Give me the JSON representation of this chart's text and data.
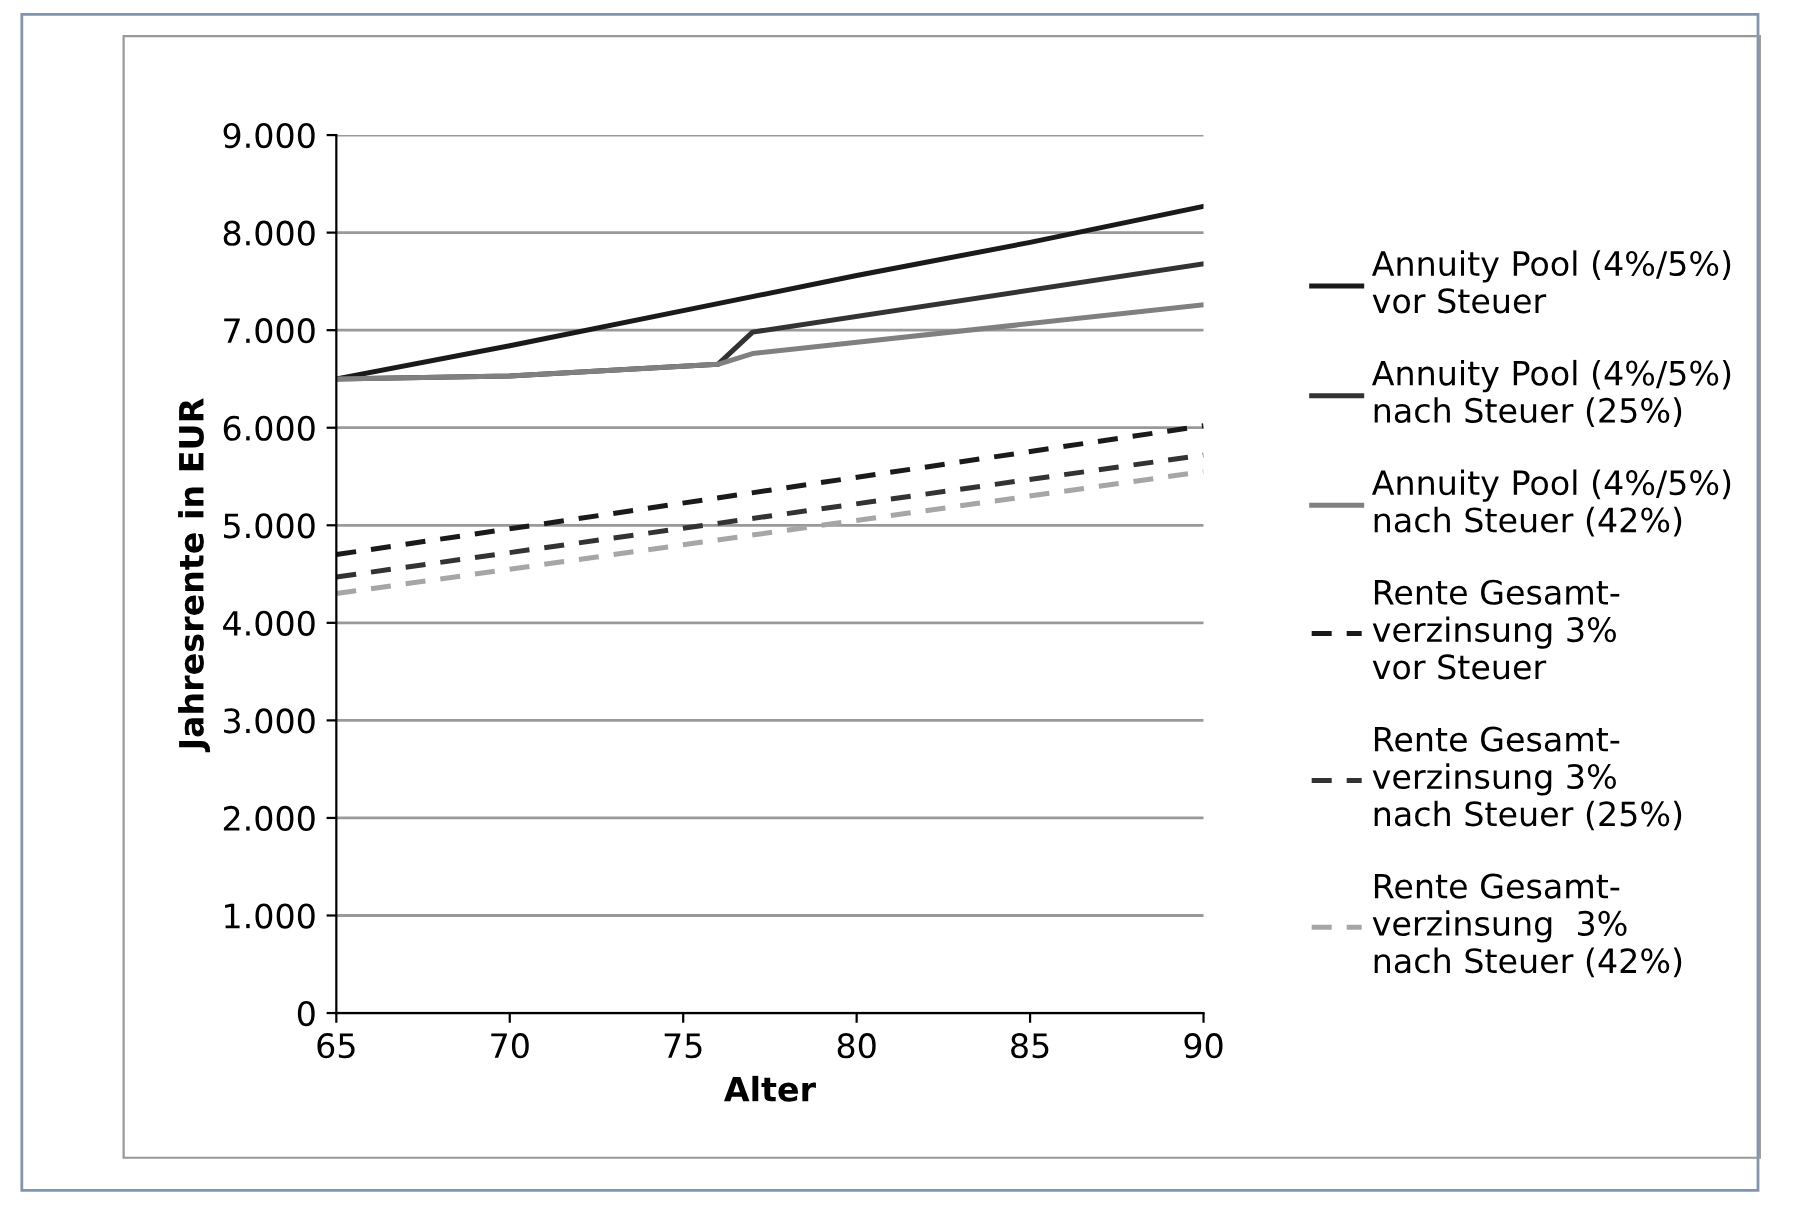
{
  "chart_data": {
    "type": "line",
    "xlabel": "Alter",
    "ylabel": "Jahresrente in EUR",
    "xlim": [
      65,
      90
    ],
    "xticks": [
      65,
      70,
      75,
      80,
      85,
      90
    ],
    "ylim": [
      0,
      9000
    ],
    "yticks": [
      {
        "value": 0,
        "label": "0"
      },
      {
        "value": 1000,
        "label": "1.000"
      },
      {
        "value": 2000,
        "label": "2.000"
      },
      {
        "value": 3000,
        "label": "3.000"
      },
      {
        "value": 4000,
        "label": "4.000"
      },
      {
        "value": 5000,
        "label": "5.000"
      },
      {
        "value": 6000,
        "label": "6.000"
      },
      {
        "value": 7000,
        "label": "7.000"
      },
      {
        "value": 8000,
        "label": "8.000"
      },
      {
        "value": 9000,
        "label": "9.000"
      }
    ],
    "grid": "y",
    "legend": "right",
    "series": [
      {
        "name": "Annuity Pool (4%/5%)\nvor Steuer",
        "color": "#1a1a1a",
        "line_style": "solid",
        "x": [
          65,
          70,
          75,
          80,
          85,
          90
        ],
        "values": [
          6500,
          6840,
          7200,
          7560,
          7900,
          8270
        ]
      },
      {
        "name": "Annuity Pool (4%/5%)\nnach Steuer (25%)",
        "color": "#333333",
        "line_style": "solid",
        "x": [
          65,
          70,
          76,
          77,
          90
        ],
        "values": [
          6500,
          6530,
          6650,
          6980,
          7680
        ]
      },
      {
        "name": "Annuity Pool (4%/5%)\nnach Steuer (42%)",
        "color": "#808080",
        "line_style": "solid",
        "x": [
          65,
          70,
          76,
          77,
          90
        ],
        "values": [
          6500,
          6530,
          6650,
          6760,
          7260
        ]
      },
      {
        "name": "Rente Gesamt-\nverzinsung 3%\nvor Steuer",
        "color": "#1a1a1a",
        "line_style": "dashed",
        "x": [
          65,
          90
        ],
        "values": [
          4700,
          6020
        ]
      },
      {
        "name": "Rente Gesamt-\nverzinsung 3%\nnach Steuer (25%)",
        "color": "#333333",
        "line_style": "dashed",
        "x": [
          65,
          90
        ],
        "values": [
          4470,
          5720
        ]
      },
      {
        "name": "Rente Gesamt-\nverzinsung  3%\nnach Steuer (42%)",
        "color": "#a6a6a6",
        "line_style": "dashed",
        "x": [
          65,
          90
        ],
        "values": [
          4300,
          5550
        ]
      }
    ]
  }
}
